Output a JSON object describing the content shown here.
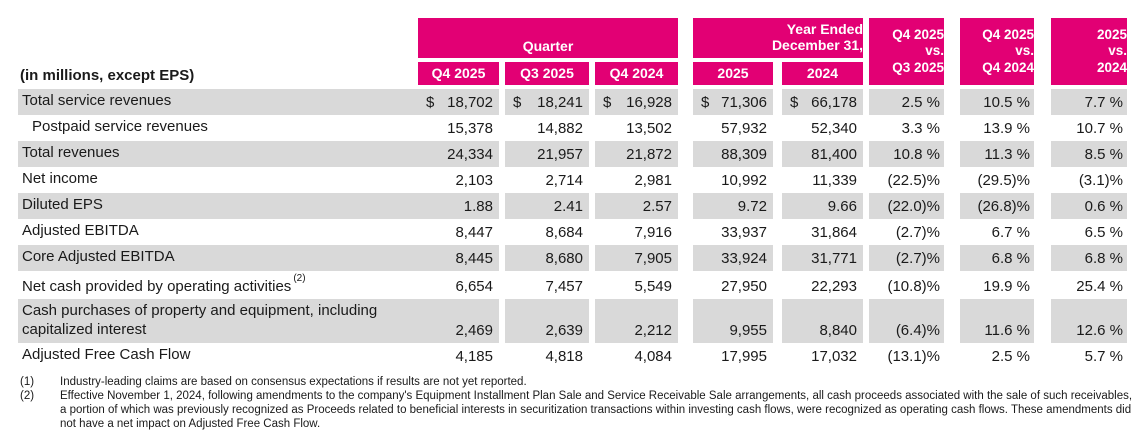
{
  "colors": {
    "accent": "#E20074",
    "shade": "#D9D9D9"
  },
  "header": {
    "left_label": "(in millions, except EPS)",
    "quarter_group": "Quarter",
    "year_group_lines": [
      "Year Ended",
      "December 31,"
    ],
    "quarter_cols": [
      "Q4 2025",
      "Q3 2025",
      "Q4 2024"
    ],
    "year_cols": [
      "2025",
      "2024"
    ],
    "vs_cols": [
      [
        "Q4 2025",
        "vs.",
        "Q3 2025"
      ],
      [
        "Q4 2025",
        "vs.",
        "Q4 2024"
      ],
      [
        "2025",
        "vs.",
        "2024"
      ]
    ]
  },
  "rows": [
    {
      "label": "Total service revenues",
      "dollars": [
        "$",
        "$",
        "$",
        "$",
        "$"
      ],
      "values": [
        "18,702",
        "18,241",
        "16,928",
        "71,306",
        "66,178",
        "2.5 %",
        "10.5 %",
        "7.7 %"
      ]
    },
    {
      "label": "Postpaid service revenues",
      "values": [
        "15,378",
        "14,882",
        "13,502",
        "57,932",
        "52,340",
        "3.3 %",
        "13.9 %",
        "10.7 %"
      ]
    },
    {
      "label": "Total revenues",
      "values": [
        "24,334",
        "21,957",
        "21,872",
        "88,309",
        "81,400",
        "10.8 %",
        "11.3 %",
        "8.5 %"
      ]
    },
    {
      "label": "Net income",
      "values": [
        "2,103",
        "2,714",
        "2,981",
        "10,992",
        "11,339",
        "(22.5)%",
        "(29.5)%",
        "(3.1)%"
      ]
    },
    {
      "label": "Diluted EPS",
      "values": [
        "1.88",
        "2.41",
        "2.57",
        "9.72",
        "9.66",
        "(22.0)%",
        "(26.8)%",
        "0.6 %"
      ]
    },
    {
      "label": "Adjusted EBITDA",
      "values": [
        "8,447",
        "8,684",
        "7,916",
        "33,937",
        "31,864",
        "(2.7)%",
        "6.7 %",
        "6.5 %"
      ]
    },
    {
      "label": "Core Adjusted EBITDA",
      "values": [
        "8,445",
        "8,680",
        "7,905",
        "33,924",
        "31,771",
        "(2.7)%",
        "6.8 %",
        "6.8 %"
      ]
    },
    {
      "label": "Net cash provided by operating activities",
      "sup": "(2)",
      "values": [
        "6,654",
        "7,457",
        "5,549",
        "27,950",
        "22,293",
        "(10.8)%",
        "19.9 %",
        "25.4 %"
      ]
    },
    {
      "label": "Cash purchases of property and equipment, including capitalized interest",
      "values": [
        "2,469",
        "2,639",
        "2,212",
        "9,955",
        "8,840",
        "(6.4)%",
        "11.6 %",
        "12.6 %"
      ]
    },
    {
      "label": "Adjusted Free Cash Flow",
      "values": [
        "4,185",
        "4,818",
        "4,084",
        "17,995",
        "17,032",
        "(13.1)%",
        "2.5 %",
        "5.7 %"
      ]
    }
  ],
  "footnotes": [
    {
      "ref": "(1)",
      "text": "Industry-leading claims are based on consensus expectations if results are not yet reported."
    },
    {
      "ref": "(2)",
      "text": "Effective November 1, 2024, following amendments to the company's Equipment Installment Plan Sale and Service Receivable Sale arrangements, all cash proceeds associated with the sale of such receivables, a portion of which was previously recognized as Proceeds related to beneficial interests in securitization transactions within investing cash flows, were recognized as operating cash flows. These amendments did not have a net impact on Adjusted Free Cash Flow."
    }
  ]
}
